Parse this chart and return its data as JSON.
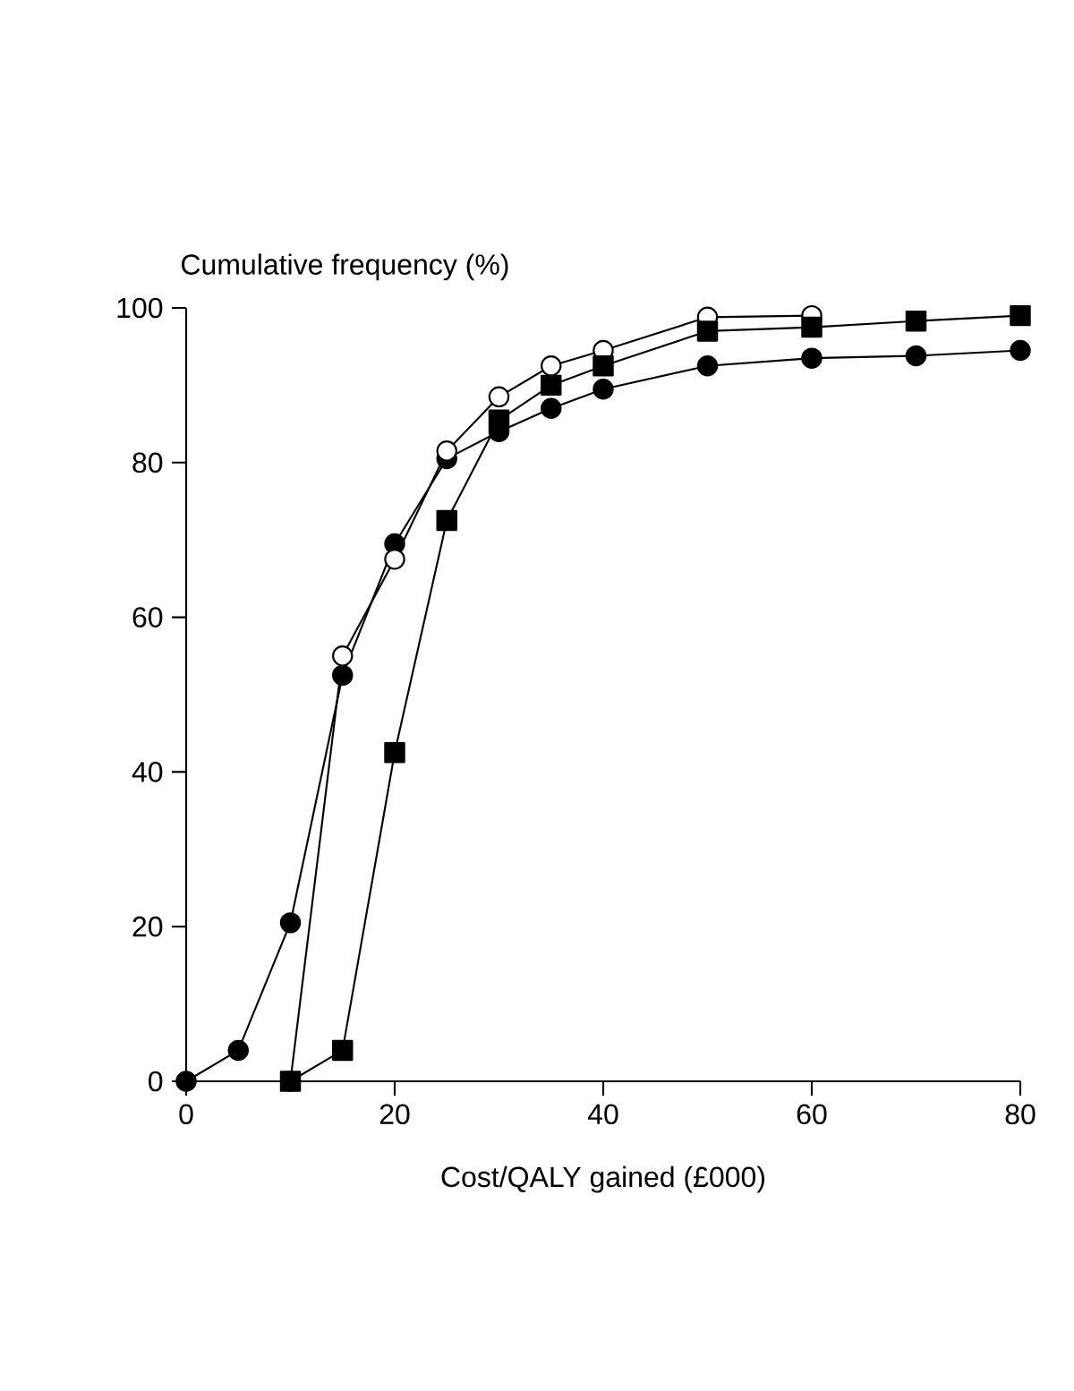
{
  "chart_data": {
    "type": "line",
    "xlabel": "Cost/QALY gained (£000)",
    "ylabel": "Cumulative frequency (%)",
    "xlim": [
      0,
      80
    ],
    "ylim": [
      0,
      100
    ],
    "xticks": [
      0,
      20,
      40,
      60,
      80
    ],
    "yticks": [
      0,
      20,
      40,
      60,
      80,
      100
    ],
    "grid": false,
    "line_style": "solid",
    "series": [
      {
        "color": "#000000",
        "marker": "circle",
        "x": [
          0,
          5,
          10,
          15,
          20,
          25,
          30,
          35,
          40,
          50,
          60,
          70,
          80
        ],
        "values": [
          0,
          4,
          20.5,
          52.5,
          69.5,
          80.5,
          84,
          87,
          89.5,
          92.5,
          93.5,
          93.8,
          94.5
        ]
      },
      {
        "color": "#ffffff",
        "marker": "circle",
        "x": [
          10,
          15,
          20,
          25,
          30,
          35,
          40,
          50,
          60
        ],
        "values": [
          0,
          55,
          67.5,
          81.5,
          88.5,
          92.5,
          94.5,
          98.8,
          99
        ]
      },
      {
        "color": "#000000",
        "marker": "square",
        "x": [
          10,
          15,
          20,
          25,
          30,
          35,
          40,
          50,
          60,
          70,
          80
        ],
        "values": [
          0,
          4,
          42.5,
          72.5,
          85.5,
          90,
          92.5,
          97,
          97.5,
          98.3,
          99
        ]
      }
    ]
  }
}
